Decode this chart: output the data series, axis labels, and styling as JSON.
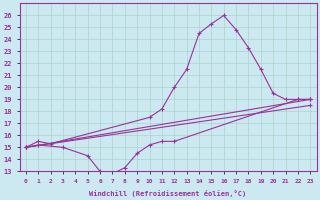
{
  "bg_color": "#cce8f0",
  "line_color": "#993399",
  "grid_color": "#aad4cc",
  "xlabel": "Windchill (Refroidissement éolien,°C)",
  "ylim": [
    13,
    27
  ],
  "xlim": [
    -0.5,
    23.5
  ],
  "yticks": [
    13,
    14,
    15,
    16,
    17,
    18,
    19,
    20,
    21,
    22,
    23,
    24,
    25,
    26
  ],
  "xticks": [
    0,
    1,
    2,
    3,
    4,
    5,
    6,
    7,
    8,
    9,
    10,
    11,
    12,
    13,
    14,
    15,
    16,
    17,
    18,
    19,
    20,
    21,
    22,
    23
  ],
  "series": [
    {
      "x": [
        0,
        1,
        2,
        10,
        11,
        12,
        13,
        14,
        15,
        16,
        17,
        18,
        19,
        20,
        21,
        22,
        23
      ],
      "y": [
        15.0,
        15.5,
        15.3,
        17.5,
        18.2,
        20.0,
        21.5,
        24.5,
        25.3,
        26.0,
        24.8,
        23.3,
        21.5,
        19.5,
        19.0,
        19.0,
        19.0
      ]
    },
    {
      "x": [
        0,
        23
      ],
      "y": [
        15.0,
        19.0
      ]
    },
    {
      "x": [
        0,
        23
      ],
      "y": [
        15.0,
        18.5
      ]
    },
    {
      "x": [
        0,
        1,
        3,
        5,
        6,
        7,
        8,
        9,
        10,
        11,
        12,
        22,
        23
      ],
      "y": [
        15.0,
        15.2,
        15.0,
        14.3,
        13.0,
        12.8,
        13.3,
        14.5,
        15.2,
        15.5,
        15.5,
        19.0,
        19.0
      ]
    }
  ]
}
